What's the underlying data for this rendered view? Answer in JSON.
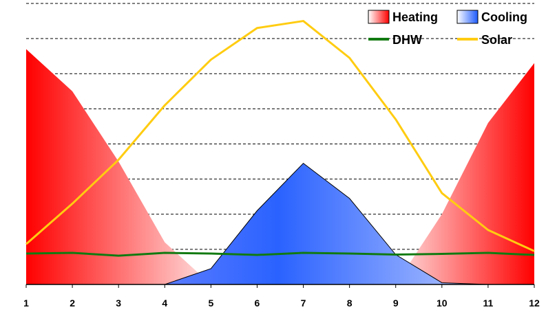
{
  "chart_data": {
    "type": "area",
    "categories": [
      "1",
      "2",
      "3",
      "4",
      "5",
      "6",
      "7",
      "8",
      "9",
      "10",
      "11",
      "12"
    ],
    "ylim": [
      0,
      8
    ],
    "grid": true,
    "legend_position": "top-right",
    "series": [
      {
        "name": "Heating",
        "kind": "area",
        "color": "#ff0000",
        "values": [
          6.7,
          5.5,
          3.5,
          1.2,
          0,
          0,
          0,
          0,
          0,
          2.0,
          4.6,
          6.3
        ]
      },
      {
        "name": "Cooling",
        "kind": "area",
        "color": "#1e5bff",
        "values": [
          0,
          0,
          0,
          0,
          0.45,
          2.1,
          3.45,
          2.45,
          0.85,
          0.05,
          0,
          0
        ]
      },
      {
        "name": "DHW",
        "kind": "line",
        "color": "#117a11",
        "values": [
          0.88,
          0.9,
          0.82,
          0.9,
          0.88,
          0.84,
          0.9,
          0.88,
          0.85,
          0.87,
          0.9,
          0.84
        ]
      },
      {
        "name": "Solar",
        "kind": "line",
        "color": "#ffcc11",
        "values": [
          1.15,
          2.3,
          3.55,
          5.1,
          6.4,
          7.3,
          7.5,
          6.45,
          4.7,
          2.6,
          1.55,
          0.95
        ]
      }
    ]
  }
}
